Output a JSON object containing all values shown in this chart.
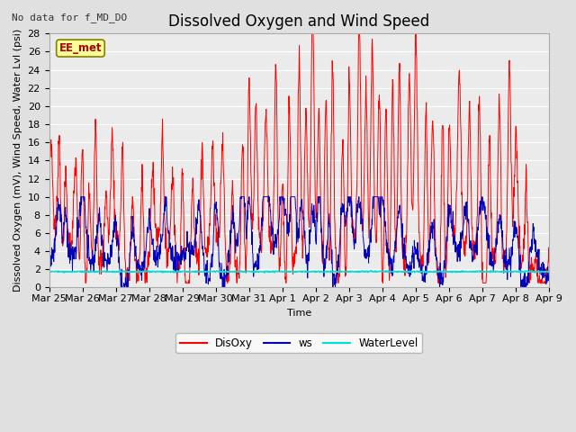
{
  "title": "Dissolved Oxygen and Wind Speed",
  "top_left_text": "No data for f_MD_DO",
  "annotation_text": "EE_met",
  "xlabel": "Time",
  "ylabel": "Dissolved Oxygen (mV), Wind Speed, Water Lvl (psi)",
  "ylim": [
    0,
    28
  ],
  "yticks": [
    0,
    2,
    4,
    6,
    8,
    10,
    12,
    14,
    16,
    18,
    20,
    22,
    24,
    26,
    28
  ],
  "xtick_labels": [
    "Mar 25",
    "Mar 26",
    "Mar 27",
    "Mar 28",
    "Mar 29",
    "Mar 30",
    "Mar 31",
    "Apr 1",
    "Apr 2",
    "Apr 3",
    "Apr 4",
    "Apr 5",
    "Apr 6",
    "Apr 7",
    "Apr 8",
    "Apr 9"
  ],
  "disoxy_color": "#FF0000",
  "ws_color": "#0000BB",
  "waterlevel_color": "#00DDDD",
  "background_color": "#E0E0E0",
  "plot_bg_color": "#EBEBEB",
  "grid_color": "#FFFFFF",
  "title_fontsize": 12,
  "label_fontsize": 8,
  "tick_fontsize": 8
}
